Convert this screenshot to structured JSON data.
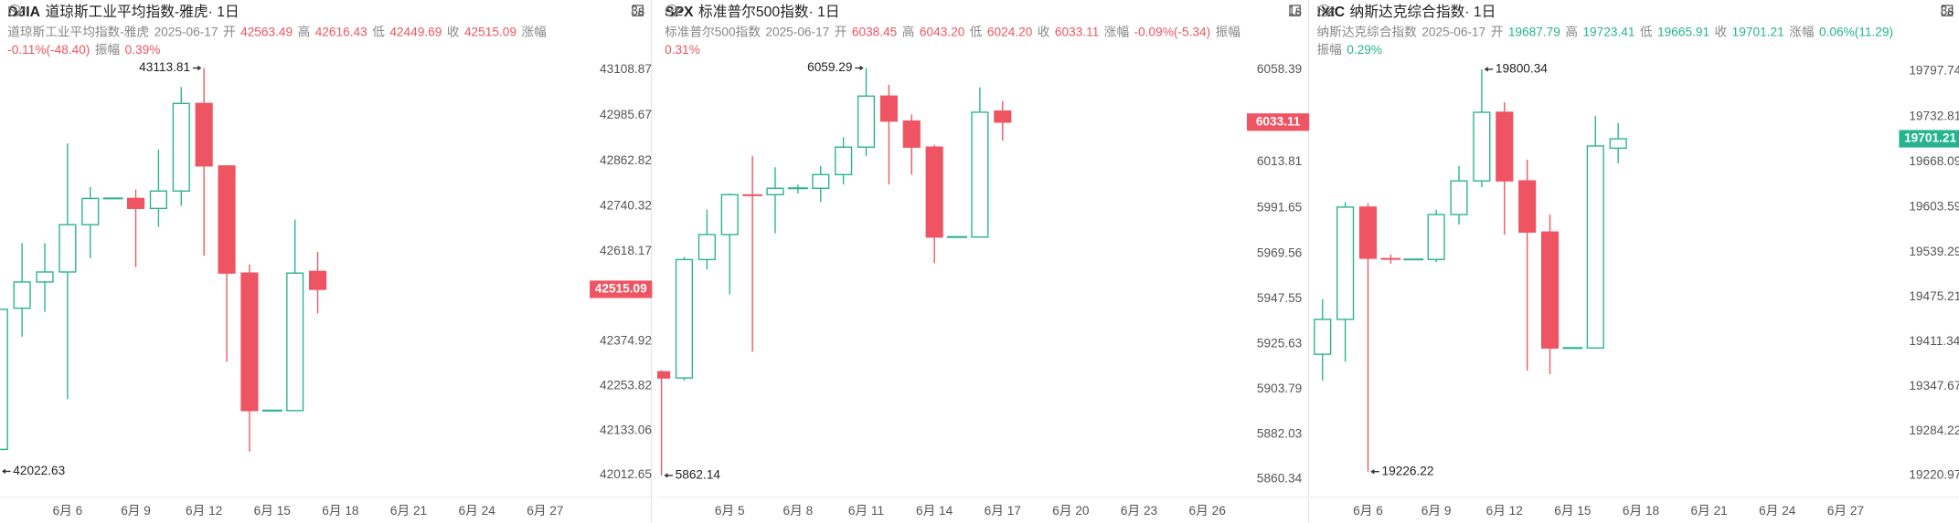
{
  "chart_data": [
    {
      "type": "candlestick",
      "symbol": "DJIA",
      "name": "道琼斯工业平均指数-雅虎",
      "period": "· 1日",
      "refresh": "3s",
      "subname": "道琼斯工业平均指数-雅虎",
      "date": "2025-06-17",
      "field_labels": {
        "open": "开",
        "high": "高",
        "low": "低",
        "close": "收",
        "change": "涨幅",
        "amplitude": "振幅"
      },
      "change": "-0.11%(-48.40)",
      "amplitude": "0.39%",
      "up_color": "#26b38f",
      "down_color": "#ee5461",
      "xlim": [
        3.03,
        28.85
      ],
      "xticks": [
        {
          "value": 6,
          "label": "6月 6"
        },
        {
          "value": 9,
          "label": "6月 9"
        },
        {
          "value": 12,
          "label": "6月 12"
        },
        {
          "value": 15,
          "label": "6月 15"
        },
        {
          "value": 18,
          "label": "6月 18"
        },
        {
          "value": 21,
          "label": "6月 21"
        },
        {
          "value": 24,
          "label": "6月 24"
        },
        {
          "value": 27,
          "label": "6月 27"
        }
      ],
      "ylim": [
        41964.7,
        43146.0
      ],
      "yticks": [
        43108.87,
        42985.67,
        42862.82,
        42740.32,
        42618.17,
        42374.92,
        42253.82,
        42133.06,
        42012.65
      ],
      "candles": [
        {
          "x": 3,
          "open": 42082,
          "high": 42480,
          "low": 42022.63,
          "close": 42461
        },
        {
          "x": 4,
          "open": 42464,
          "high": 42640,
          "low": 42387,
          "close": 42535
        },
        {
          "x": 5,
          "open": 42535,
          "high": 42640,
          "low": 42454,
          "close": 42562
        },
        {
          "x": 6,
          "open": 42562,
          "high": 42910,
          "low": 42218,
          "close": 42690
        },
        {
          "x": 7,
          "open": 42690,
          "high": 42792,
          "low": 42599,
          "close": 42761
        },
        {
          "x": 8,
          "open": 42761,
          "high": 42763,
          "low": 42759,
          "close": 42761
        },
        {
          "x": 9,
          "open": 42761,
          "high": 42785,
          "low": 42575,
          "close": 42734
        },
        {
          "x": 10,
          "open": 42734,
          "high": 42893,
          "low": 42684,
          "close": 42781
        },
        {
          "x": 11,
          "open": 42781,
          "high": 43062,
          "low": 42741,
          "close": 43018
        },
        {
          "x": 12,
          "open": 43018,
          "high": 43113.81,
          "low": 42606,
          "close": 42849
        },
        {
          "x": 13,
          "open": 42849,
          "high": 42849,
          "low": 42319,
          "close": 42559
        },
        {
          "x": 14,
          "open": 42559,
          "high": 42582,
          "low": 42076,
          "close": 42187
        },
        {
          "x": 15,
          "open": 42187,
          "high": 42187,
          "low": 42187,
          "close": 42187
        },
        {
          "x": 16,
          "open": 42187,
          "high": 42704,
          "low": 42187,
          "close": 42559
        },
        {
          "x": 17,
          "open": 42563.49,
          "high": 42616.43,
          "low": 42449.69,
          "close": 42515.09
        }
      ]
    },
    {
      "type": "candlestick",
      "symbol": "SPX",
      "name": "标准普尔500指数",
      "period": "· 1日",
      "refresh": "1s",
      "subname": "标准普尔500指数",
      "date": "2025-06-17",
      "field_labels": {
        "open": "开",
        "high": "高",
        "low": "低",
        "close": "收",
        "change": "涨幅",
        "amplitude": "振幅"
      },
      "change": "-0.09%(-5.34)",
      "amplitude": "0.31%",
      "up_color": "#26b38f",
      "down_color": "#ee5461",
      "xlim": [
        1.81,
        27.63
      ],
      "xticks": [
        {
          "value": 5,
          "label": "6月 5"
        },
        {
          "value": 8,
          "label": "6月 8"
        },
        {
          "value": 11,
          "label": "6月 11"
        },
        {
          "value": 14,
          "label": "6月 14"
        },
        {
          "value": 17,
          "label": "6月 17"
        },
        {
          "value": 20,
          "label": "6月 20"
        },
        {
          "value": 23,
          "label": "6月 23"
        },
        {
          "value": 26,
          "label": "6月 26"
        }
      ],
      "ylim": [
        5853.77,
        6065.03
      ],
      "yticks": [
        6058.39,
        6013.81,
        5991.65,
        5969.56,
        5947.55,
        5925.63,
        5903.79,
        5882.03,
        5860.34
      ],
      "candles": [
        {
          "x": 2,
          "open": 5912.3,
          "high": 5913,
          "low": 5862.14,
          "close": 5909.3
        },
        {
          "x": 3,
          "open": 5909.3,
          "high": 5967.8,
          "low": 5908.1,
          "close": 5966.6
        },
        {
          "x": 4,
          "open": 5966.6,
          "high": 5990.8,
          "low": 5961.8,
          "close": 5978.7
        },
        {
          "x": 5,
          "open": 5978.7,
          "high": 5998.6,
          "low": 5949.7,
          "close": 5998
        },
        {
          "x": 6,
          "open": 5998,
          "high": 6016.7,
          "low": 5922,
          "close": 5997.5
        },
        {
          "x": 7,
          "open": 5998,
          "high": 6011.3,
          "low": 5979.3,
          "close": 6001.1
        },
        {
          "x": 8,
          "open": 6001.1,
          "high": 6002.9,
          "low": 5998.6,
          "close": 6001.1
        },
        {
          "x": 9,
          "open": 6001.1,
          "high": 6011.9,
          "low": 5994.4,
          "close": 6007.7
        },
        {
          "x": 10,
          "open": 6007.7,
          "high": 6025.8,
          "low": 6002.9,
          "close": 6021
        },
        {
          "x": 11,
          "open": 6021,
          "high": 6059.29,
          "low": 6016.7,
          "close": 6045.7
        },
        {
          "x": 12,
          "open": 6045.7,
          "high": 6051.2,
          "low": 6002.9,
          "close": 6033.6
        },
        {
          "x": 13,
          "open": 6033.6,
          "high": 6036.7,
          "low": 6007.7,
          "close": 6021
        },
        {
          "x": 14,
          "open": 6021,
          "high": 6022.2,
          "low": 5964.8,
          "close": 5977.5
        },
        {
          "x": 15,
          "open": 5977.5,
          "high": 5977.5,
          "low": 5977.5,
          "close": 5977.5
        },
        {
          "x": 16,
          "open": 5977.5,
          "high": 6049.9,
          "low": 5977.5,
          "close": 6037.9
        },
        {
          "x": 17,
          "open": 6038.45,
          "high": 6043.2,
          "low": 6024.2,
          "close": 6033.11,
          "value_labels": {
            "high": "6043.20",
            "low": "6024.20"
          }
        }
      ]
    },
    {
      "type": "candlestick",
      "symbol": "IXIC",
      "name": "纳斯达克综合指数",
      "period": "· 1日",
      "refresh": "3s",
      "subname": "纳斯达克综合指数",
      "date": "2025-06-17",
      "field_labels": {
        "open": "开",
        "high": "高",
        "low": "低",
        "close": "收",
        "change": "涨幅",
        "amplitude": "振幅"
      },
      "change": "0.06%(11.29)",
      "amplitude": "0.29%",
      "up_color": "#26b38f",
      "down_color": "#ee5461",
      "xlim": [
        3.42,
        29.24
      ],
      "xticks": [
        {
          "value": 6,
          "label": "6月 6"
        },
        {
          "value": 9,
          "label": "6月 9"
        },
        {
          "value": 12,
          "label": "6月 12"
        },
        {
          "value": 15,
          "label": "6月 15"
        },
        {
          "value": 18,
          "label": "6月 18"
        },
        {
          "value": 21,
          "label": "6月 21"
        },
        {
          "value": 24,
          "label": "6月 24"
        },
        {
          "value": 27,
          "label": "6月 27"
        }
      ],
      "ylim": [
        19196.1,
        19819.1
      ],
      "yticks": [
        19797.74,
        19732.81,
        19668.09,
        19603.59,
        19539.29,
        19475.21,
        19411.34,
        19347.67,
        19284.22,
        19220.97
      ],
      "candles": [
        {
          "x": 4,
          "open": 19393.7,
          "high": 19472,
          "low": 19356.3,
          "close": 19443.5
        },
        {
          "x": 5,
          "open": 19443.5,
          "high": 19610.8,
          "low": 19383,
          "close": 19603.7
        },
        {
          "x": 6,
          "open": 19603.7,
          "high": 19609,
          "low": 19226.22,
          "close": 19530.7
        },
        {
          "x": 7,
          "open": 19530.7,
          "high": 19536,
          "low": 19523,
          "close": 19529
        },
        {
          "x": 8,
          "open": 19529,
          "high": 19529,
          "low": 19529,
          "close": 19529
        },
        {
          "x": 9,
          "open": 19529,
          "high": 19600.2,
          "low": 19525.4,
          "close": 19593
        },
        {
          "x": 10,
          "open": 19593,
          "high": 19662.4,
          "low": 19578.8,
          "close": 19641.1
        },
        {
          "x": 11,
          "open": 19641.1,
          "high": 19800.34,
          "low": 19632.2,
          "close": 19739
        },
        {
          "x": 12,
          "open": 19739,
          "high": 19753.2,
          "low": 19564.5,
          "close": 19641.1
        },
        {
          "x": 13,
          "open": 19641.1,
          "high": 19671.4,
          "low": 19370.5,
          "close": 19568.1
        },
        {
          "x": 14,
          "open": 19568.1,
          "high": 19593,
          "low": 19365.2,
          "close": 19402.6
        },
        {
          "x": 15,
          "open": 19402.6,
          "high": 19402.6,
          "low": 19402.6,
          "close": 19402.6
        },
        {
          "x": 16,
          "open": 19402.6,
          "high": 19733.7,
          "low": 19402.6,
          "close": 19690.9
        },
        {
          "x": 17,
          "open": 19687.79,
          "high": 19723.41,
          "low": 19665.91,
          "close": 19701.21
        }
      ]
    }
  ]
}
